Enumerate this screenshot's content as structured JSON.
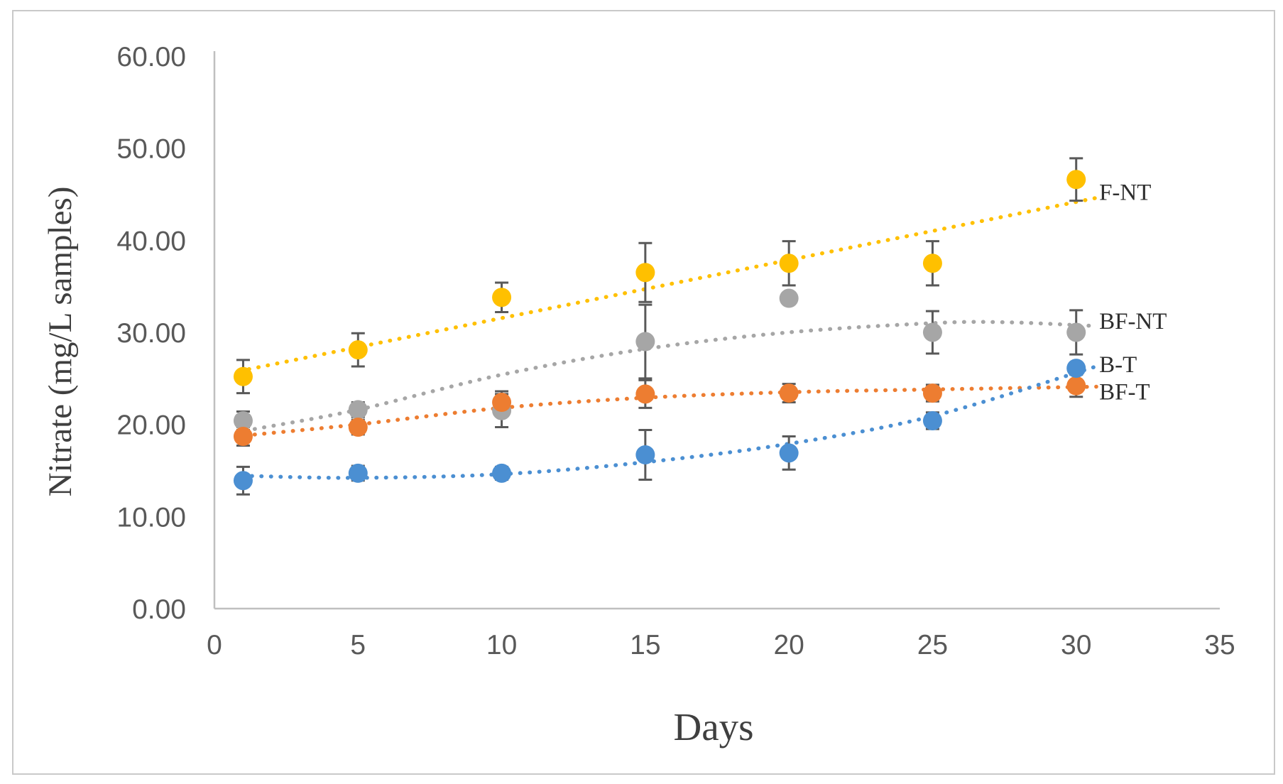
{
  "figure": {
    "background": "#ffffff",
    "border_color": "#c9c9c9",
    "axis_line_color": "#bfbfbf",
    "error_bar_color": "#595959",
    "tick_label_color": "#595959"
  },
  "chart_data": {
    "type": "scatter",
    "title": "",
    "xlabel": "Days",
    "ylabel": "Nitrate (mg/L samples)",
    "xlim": [
      0,
      35
    ],
    "ylim": [
      0,
      60
    ],
    "grid": false,
    "legend_position": "right-of-last-point",
    "x_tick_labels": [
      "0",
      "5",
      "10",
      "15",
      "20",
      "25",
      "30",
      "35"
    ],
    "x_tick_values": [
      0,
      5,
      10,
      15,
      20,
      25,
      30,
      35
    ],
    "y_tick_labels": [
      "0.00",
      "10.00",
      "20.00",
      "30.00",
      "40.00",
      "50.00",
      "60.00"
    ],
    "y_tick_values": [
      0,
      10,
      20,
      30,
      40,
      50,
      60
    ],
    "x": [
      1,
      5,
      10,
      15,
      20,
      25,
      30
    ],
    "series": [
      {
        "name": "BF-NT",
        "color": "#a6a6a6",
        "values": [
          20.4,
          21.6,
          21.5,
          29.0,
          33.7,
          30.0,
          30.0
        ],
        "errors": [
          1.0,
          0.8,
          1.8,
          4.0,
          0.6,
          2.3,
          2.4
        ],
        "trend": [
          [
            1.4,
            19.5
          ],
          [
            5,
            21.6
          ],
          [
            10,
            25.4
          ],
          [
            15,
            28.2
          ],
          [
            20,
            30.0
          ],
          [
            25,
            31.0
          ],
          [
            27.5,
            31.1
          ],
          [
            30.6,
            30.7
          ]
        ],
        "label": "BF-NT",
        "label_day": 30.8,
        "label_value": 30.4
      },
      {
        "name": "BF-T",
        "color": "#ed7d31",
        "values": [
          18.7,
          19.7,
          22.4,
          23.3,
          23.4,
          23.4,
          24.2
        ],
        "errors": [
          1.0,
          0.8,
          1.2,
          1.5,
          1.0,
          0.9,
          1.2
        ],
        "trend": [
          [
            1.4,
            18.9
          ],
          [
            5,
            20.0
          ],
          [
            10,
            21.8
          ],
          [
            15,
            22.9
          ],
          [
            20,
            23.5
          ],
          [
            25,
            23.8
          ],
          [
            30.7,
            24.1
          ]
        ],
        "label": "BF-T",
        "label_day": 30.8,
        "label_value": 22.7
      },
      {
        "name": "B-T",
        "color": "#4b8fd2",
        "values": [
          13.9,
          14.7,
          14.7,
          16.7,
          16.9,
          20.4,
          26.1
        ],
        "errors": [
          1.5,
          0.8,
          0.7,
          2.7,
          1.8,
          0.9,
          0.6
        ],
        "trend": [
          [
            1.3,
            14.4
          ],
          [
            5,
            14.2
          ],
          [
            10,
            14.6
          ],
          [
            15,
            15.9
          ],
          [
            20,
            17.9
          ],
          [
            25,
            20.9
          ],
          [
            30.7,
            26.3
          ]
        ],
        "label": "B-T",
        "label_day": 30.8,
        "label_value": 25.7
      },
      {
        "name": "F-NT",
        "color": "#ffc000",
        "values": [
          25.2,
          28.1,
          33.8,
          36.5,
          37.5,
          37.5,
          46.6
        ],
        "errors": [
          1.8,
          1.8,
          1.6,
          3.2,
          2.4,
          2.4,
          2.3
        ],
        "trend": [
          [
            1.2,
            26.0
          ],
          [
            30.7,
            44.6
          ]
        ],
        "label": "F-NT",
        "label_day": 30.8,
        "label_value": 44.4
      }
    ]
  }
}
